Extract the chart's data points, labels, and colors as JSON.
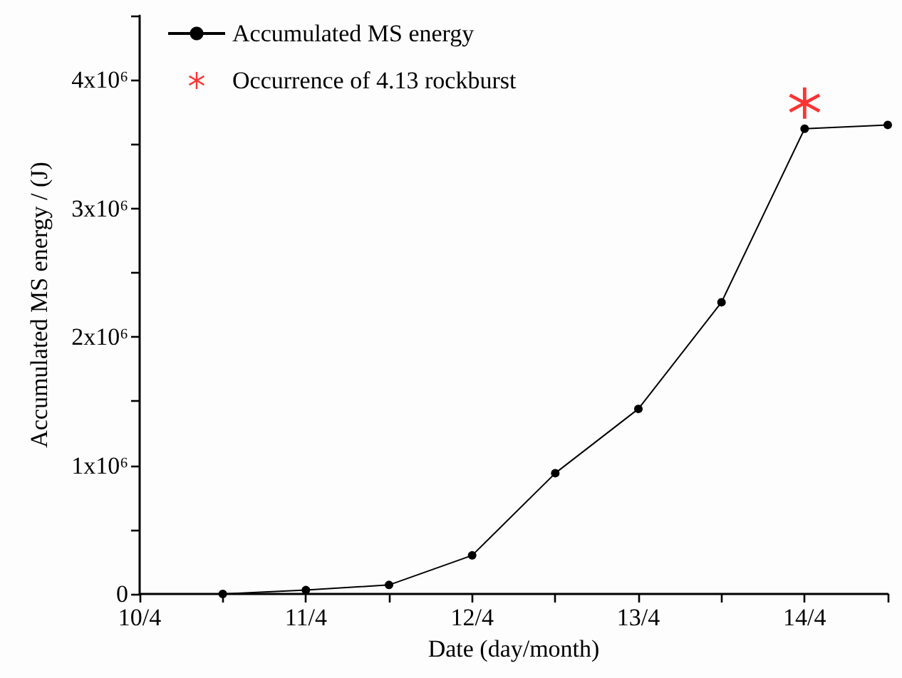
{
  "chart_data": {
    "type": "line",
    "xlabel": "Date (day/month)",
    "ylabel": "Accumulated MS energy / (J)",
    "series": [
      {
        "name": "Accumulated MS energy",
        "color": "#000000",
        "marker": "circle",
        "x": [
          "--04-10T12:00",
          "--04-11",
          "--04-11T12:00",
          "--04-12",
          "--04-12T12:00",
          "--04-13",
          "--04-13T12:00",
          "--04-14",
          "--04-14T12:00"
        ],
        "values": [
          0,
          30000,
          70000,
          300000,
          940000,
          1440000,
          2270000,
          3620000,
          3650000
        ]
      },
      {
        "name": "Occurrence of 4.13 rockburst",
        "color": "#ff0000",
        "type": "scatter",
        "marker": "star",
        "x": [
          "--04-14"
        ],
        "values": [
          3820000
        ]
      }
    ],
    "xlim": [
      "--04-10",
      "--04-14T12:00"
    ],
    "xticks": [
      {
        "value": "--04-10",
        "label": "10/4"
      },
      {
        "value": "--04-10T12:00",
        "label": null
      },
      {
        "value": "--04-11",
        "label": "11/4"
      },
      {
        "value": "--04-11T12:00",
        "label": null
      },
      {
        "value": "--04-12",
        "label": "12/4"
      },
      {
        "value": "--04-12T12:00",
        "label": null
      },
      {
        "value": "--04-13",
        "label": "13/4"
      },
      {
        "value": "--04-13T12:00",
        "label": null
      },
      {
        "value": "--04-14",
        "label": "14/4"
      },
      {
        "value": "--04-14T12:00",
        "label": null
      }
    ],
    "ylim": [
      0,
      4500000
    ],
    "yticks": [
      0,
      {
        "value": 500000,
        "label": null
      },
      {
        "value": 1000000,
        "label": "1x10⁶"
      },
      {
        "value": 1500000,
        "label": null
      },
      {
        "value": 2000000,
        "label": "2x10⁶"
      },
      {
        "value": 2500000,
        "label": null
      },
      {
        "value": 3000000,
        "label": "3x10⁶"
      },
      {
        "value": 3500000,
        "label": null
      },
      {
        "value": 4000000,
        "label": "4x10⁶"
      },
      {
        "value": 4500000,
        "label": null
      }
    ],
    "grid": false,
    "legend": "top left",
    "line_style": "solid"
  }
}
